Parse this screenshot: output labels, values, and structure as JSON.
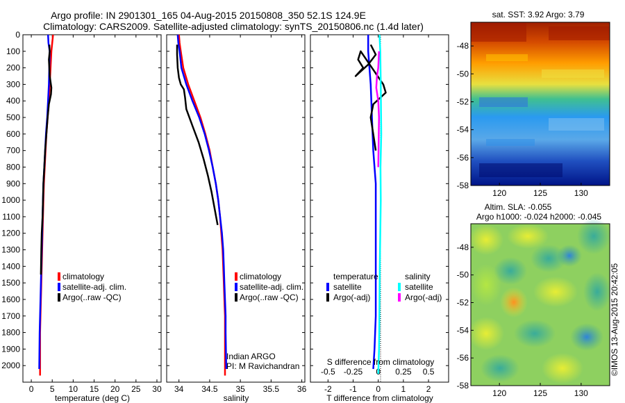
{
  "title_line1": "Argo profile: IN 2901301_165 04-Aug-2015 20150808_350 52.1S 124.9E",
  "title_line2": "Climatology: CARS2009. Satellite-adjusted climatology: synTS_20150806.nc (1.4d later)",
  "credit": "©IMOS 13-Aug-2015 20:42:05",
  "colors": {
    "climatology": "#ff0000",
    "satellite": "#0000ff",
    "argo": "#000000",
    "sal_satellite": "#00ffff",
    "sal_argo": "#ff00ff"
  },
  "chart_data": [
    {
      "type": "line",
      "name": "temperature-profile",
      "xlabel": "temperature (deg C)",
      "xlim": [
        -2,
        31
      ],
      "ylim": [
        2100,
        0
      ],
      "xticks": [
        0,
        5,
        10,
        15,
        20,
        25,
        30
      ],
      "yticks": [
        0,
        100,
        200,
        300,
        400,
        500,
        600,
        700,
        800,
        900,
        1000,
        1100,
        1200,
        1300,
        1400,
        1500,
        1600,
        1700,
        1800,
        1900,
        2000
      ],
      "legend": [
        "climatology",
        "satellite-adj. clim.",
        "Argo(..raw -QC)"
      ],
      "series": [
        {
          "name": "climatology",
          "color": "#ff0000",
          "x": [
            5.2,
            5.0,
            4.8,
            4.6,
            4.4,
            4.2,
            3.9,
            3.6,
            3.4,
            3.2,
            3.0,
            2.9,
            2.8,
            2.7,
            2.6,
            2.5,
            2.4,
            2.3,
            2.2,
            2.1,
            2.1
          ],
          "y": [
            0,
            50,
            100,
            200,
            300,
            400,
            500,
            600,
            700,
            800,
            900,
            1000,
            1100,
            1200,
            1300,
            1400,
            1500,
            1600,
            1700,
            1800,
            2060
          ]
        },
        {
          "name": "satellite-adj. clim.",
          "color": "#0000ff",
          "x": [
            4.0,
            4.1,
            4.4,
            4.3,
            4.2,
            4.0,
            3.8,
            3.5,
            3.3,
            3.1,
            2.9,
            2.8,
            2.7,
            2.6,
            2.5,
            2.4,
            2.3,
            2.2,
            2.1,
            2.0,
            1.9
          ],
          "y": [
            0,
            50,
            100,
            200,
            300,
            400,
            500,
            600,
            700,
            800,
            900,
            1000,
            1100,
            1200,
            1300,
            1400,
            1500,
            1600,
            1700,
            1800,
            2020
          ]
        },
        {
          "name": "Argo(..raw -QC)",
          "color": "#000000",
          "x": [
            4.3,
            4.4,
            4.2,
            4.4,
            4.8,
            4.7,
            4.2,
            3.9,
            3.6,
            3.3,
            3.1,
            2.9,
            2.8,
            2.7,
            2.5,
            2.4,
            2.3
          ],
          "y": [
            60,
            100,
            150,
            250,
            320,
            360,
            420,
            500,
            600,
            700,
            800,
            900,
            1000,
            1100,
            1200,
            1300,
            1450
          ]
        }
      ]
    },
    {
      "type": "line",
      "name": "salinity-profile",
      "xlabel": "salinity",
      "xlim": [
        33.8,
        36.05
      ],
      "ylim": [
        2100,
        0
      ],
      "xticks": [
        34,
        34.5,
        35,
        35.5,
        36
      ],
      "xticklabels": [
        "34",
        "34.5",
        "35",
        "35.5",
        "36"
      ],
      "legend": [
        "climatology",
        "satellite-adj. clim.",
        "Argo(..raw -QC)"
      ],
      "annotation": [
        "Indian ARGO",
        "PI: M Ravichandran"
      ],
      "series": [
        {
          "name": "climatology",
          "color": "#ff0000",
          "x": [
            34.0,
            34.01,
            34.03,
            34.07,
            34.15,
            34.25,
            34.35,
            34.43,
            34.5,
            34.55,
            34.6,
            34.64,
            34.67,
            34.69,
            34.71,
            34.72,
            34.73,
            34.74,
            34.75,
            34.75,
            34.75
          ],
          "y": [
            0,
            50,
            100,
            200,
            300,
            400,
            500,
            600,
            700,
            800,
            900,
            1000,
            1100,
            1200,
            1300,
            1400,
            1500,
            1600,
            1700,
            1800,
            2060
          ]
        },
        {
          "name": "satellite-adj. clim.",
          "color": "#0000ff",
          "x": [
            33.98,
            33.99,
            34.01,
            34.04,
            34.12,
            34.22,
            34.33,
            34.42,
            34.49,
            34.55,
            34.6,
            34.64,
            34.67,
            34.7,
            34.72,
            34.73,
            34.74,
            34.75,
            34.76,
            34.76,
            34.77
          ],
          "y": [
            0,
            50,
            100,
            200,
            300,
            400,
            500,
            600,
            700,
            800,
            900,
            1000,
            1100,
            1200,
            1300,
            1400,
            1500,
            1600,
            1700,
            1800,
            2020
          ]
        },
        {
          "name": "Argo(..raw -QC)",
          "color": "#000000",
          "x": [
            33.97,
            33.97,
            33.98,
            34.0,
            34.03,
            34.08,
            34.1,
            34.12,
            34.22,
            34.32,
            34.4,
            34.47,
            34.53,
            34.58,
            34.63
          ],
          "y": [
            60,
            120,
            200,
            260,
            300,
            330,
            380,
            450,
            550,
            650,
            750,
            850,
            950,
            1050,
            1150
          ]
        }
      ]
    },
    {
      "type": "line",
      "name": "difference-profile",
      "xlabel": "T difference from climatology",
      "x2label": "S difference from climatology",
      "xlim": [
        -2.7,
        2.8
      ],
      "x2lim": [
        -0.675,
        0.7
      ],
      "ylim": [
        2100,
        0
      ],
      "xticks": [
        -2,
        -1,
        0,
        1,
        2
      ],
      "x2ticks": [
        -0.5,
        -0.25,
        0,
        0.25,
        0.5
      ],
      "x2ticklabels": [
        "-0.5",
        "-0.25",
        "0",
        "0.25",
        "0.5"
      ],
      "legend_groups": [
        {
          "title": "temperature",
          "entries": [
            "satellite",
            "Argo(-adj)"
          ]
        },
        {
          "title": "salinity",
          "entries": [
            "satellite",
            "Argo(-adj)"
          ]
        }
      ],
      "series": [
        {
          "name": "T satellite",
          "color": "#0000ff",
          "x": [
            -0.4,
            -0.4,
            -0.3,
            -0.25,
            -0.2,
            -0.1,
            -0.1,
            -0.1,
            -0.1,
            -0.1,
            -0.15,
            -0.2
          ],
          "y": [
            0,
            100,
            300,
            500,
            700,
            900,
            1100,
            1300,
            1500,
            1700,
            1900,
            2020
          ]
        },
        {
          "name": "T Argo(-adj)",
          "color": "#000000",
          "x": [
            -0.3,
            -0.1,
            -0.4,
            -0.9,
            -0.6,
            -0.8,
            -0.7,
            0.2,
            0.3,
            -0.2,
            -0.3,
            -0.2,
            -0.1
          ],
          "y": [
            60,
            120,
            180,
            250,
            200,
            150,
            100,
            300,
            350,
            420,
            500,
            600,
            700
          ]
        },
        {
          "name": "S satellite",
          "color": "#00ffff",
          "x": [
            0.05,
            0.08,
            0.1,
            0.12,
            0.09,
            0.1,
            0.08,
            0.06,
            0.05,
            0.04,
            0.03,
            0.02,
            0.0
          ],
          "y": [
            0,
            100,
            300,
            600,
            800,
            1000,
            1200,
            1400,
            1600,
            1800,
            1900,
            1950,
            2050
          ]
        },
        {
          "name": "S Argo(-adj)",
          "color": "#ff00ff",
          "x": [
            0.03,
            0.0,
            -0.05,
            -0.08,
            0.0,
            0.03,
            0.02,
            0.01,
            0.0
          ],
          "y": [
            100,
            200,
            250,
            320,
            400,
            500,
            600,
            700,
            800
          ]
        }
      ]
    },
    {
      "type": "heatmap",
      "name": "sst-map",
      "title": "sat. SST: 3.92  Argo: 3.79",
      "xlim": [
        116.5,
        133.5
      ],
      "ylim": [
        -58,
        -46.3
      ],
      "xticks": [
        120,
        125,
        130
      ],
      "yticks": [
        -48,
        -50,
        -52,
        -54,
        -56,
        -58
      ]
    },
    {
      "type": "heatmap",
      "name": "sla-map",
      "title": "Altim. SLA: -0.055",
      "subtitle": "Argo h1000: -0.024 h2000: -0.045",
      "xlim": [
        116.5,
        133.5
      ],
      "ylim": [
        -58,
        -46.3
      ],
      "xticks": [
        120,
        125,
        130
      ],
      "yticks": [
        -48,
        -50,
        -52,
        -54,
        -56,
        -58
      ]
    }
  ]
}
